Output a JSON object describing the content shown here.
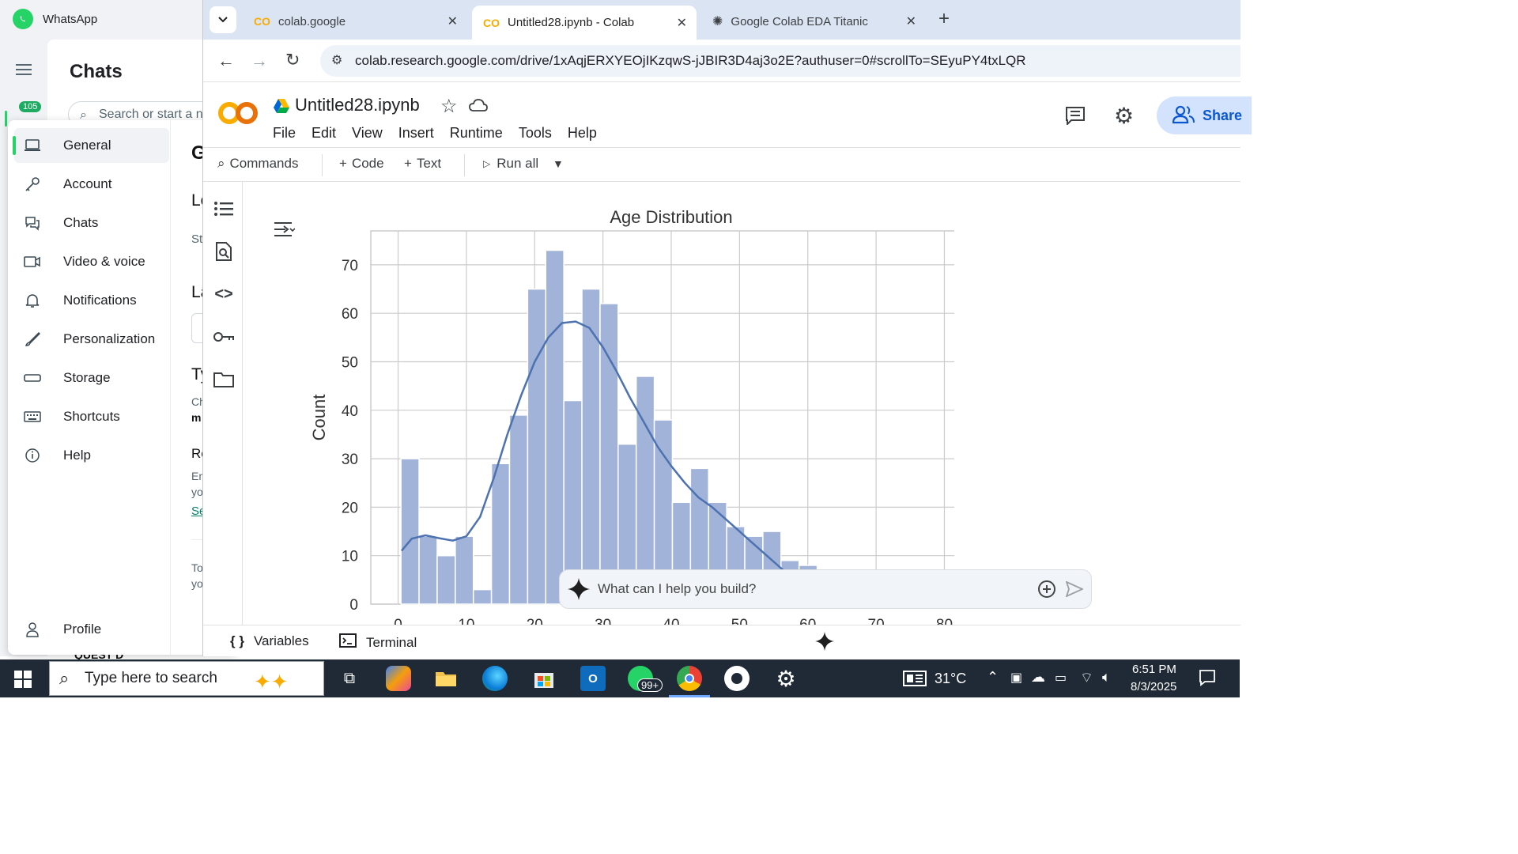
{
  "whatsapp": {
    "app_title": "WhatsApp",
    "unread_badge": "105",
    "chats_title": "Chats",
    "search_placeholder": "Search or start a n",
    "settings_menu": [
      {
        "label": "General",
        "icon": "laptop-icon"
      },
      {
        "label": "Account",
        "icon": "key-icon"
      },
      {
        "label": "Chats",
        "icon": "chat-bubbles-icon"
      },
      {
        "label": "Video & voice",
        "icon": "video-camera-icon"
      },
      {
        "label": "Notifications",
        "icon": "bell-icon"
      },
      {
        "label": "Personalization",
        "icon": "brush-icon"
      },
      {
        "label": "Storage",
        "icon": "storage-icon"
      },
      {
        "label": "Shortcuts",
        "icon": "keyboard-icon"
      },
      {
        "label": "Help",
        "icon": "info-icon"
      }
    ],
    "profile_label": "Profile",
    "right_fragments": [
      "G",
      "Lo",
      "St",
      "La",
      "Ty",
      "Ch",
      "m",
      "Re",
      "En",
      "yo",
      "Se",
      "To",
      "yo"
    ],
    "behind_text": "QUEST D"
  },
  "browser": {
    "tabs": [
      {
        "title": "colab.google",
        "icon": "colab-icon"
      },
      {
        "title": "Untitled28.ipynb - Colab",
        "icon": "colab-icon"
      },
      {
        "title": "Google Colab EDA Titanic",
        "icon": "openai-icon"
      }
    ],
    "url": "colab.research.google.com/drive/1xAqjERXYEOjIKzqwS-jJBIR3D4aj3o2E?authuser=0#scrollTo=SEyuPY4txLQR"
  },
  "colab": {
    "notebook_title": "Untitled28.ipynb",
    "menu": [
      "File",
      "Edit",
      "View",
      "Insert",
      "Runtime",
      "Tools",
      "Help"
    ],
    "toolbar": {
      "commands": "Commands",
      "code": "Code",
      "text": "Text",
      "run_all": "Run all"
    },
    "share": "Share",
    "gemini_placeholder": "What can I help you build?",
    "bottom": {
      "variables": "Variables",
      "terminal": "Terminal"
    }
  },
  "chart_data": {
    "type": "bar",
    "title": "Age Distribution",
    "xlabel": "",
    "ylabel": "Count",
    "x_ticks": [
      0,
      10,
      20,
      30,
      40,
      50,
      60,
      70,
      80
    ],
    "y_ticks": [
      0,
      10,
      20,
      30,
      40,
      50,
      60,
      70
    ],
    "xlim": [
      -4,
      84
    ],
    "ylim": [
      0,
      77
    ],
    "bin_edges": [
      0.42,
      3.07,
      5.72,
      8.37,
      11.02,
      13.67,
      16.32,
      18.97,
      21.62,
      24.27,
      26.92,
      29.57,
      32.22,
      34.87,
      37.52,
      40.17,
      42.82,
      45.47,
      48.12,
      50.77,
      53.42,
      56.07,
      58.72,
      61.37,
      64.02
    ],
    "counts": [
      30,
      14,
      10,
      14,
      3,
      29,
      39,
      65,
      73,
      42,
      65,
      62,
      33,
      47,
      38,
      21,
      28,
      21,
      16,
      14,
      15,
      9,
      8,
      2
    ],
    "kde": {
      "x": [
        0.5,
        2,
        4,
        6,
        8,
        10,
        12,
        14,
        16,
        18,
        20,
        22,
        24,
        26,
        28,
        30,
        32,
        34,
        36,
        38,
        40,
        42,
        44,
        46,
        48,
        50,
        52,
        54,
        56,
        58,
        60,
        62,
        64
      ],
      "y": [
        11,
        13.5,
        14.2,
        13.6,
        13.1,
        14,
        18,
        26,
        35,
        43,
        50,
        55,
        58,
        58.3,
        57,
        53,
        48,
        42.5,
        37.5,
        32.5,
        28.5,
        25,
        22,
        20,
        17.5,
        15,
        12.5,
        10,
        7.5,
        5,
        3,
        1.8,
        0.8
      ]
    },
    "grid": true,
    "color": "#4c72b0",
    "fill": "#a1b3d8"
  },
  "taskbar": {
    "search_placeholder": "Type here to search",
    "whatsapp_badge": "99+",
    "weather": "31°C",
    "time": "6:51 PM",
    "date": "8/3/2025"
  }
}
